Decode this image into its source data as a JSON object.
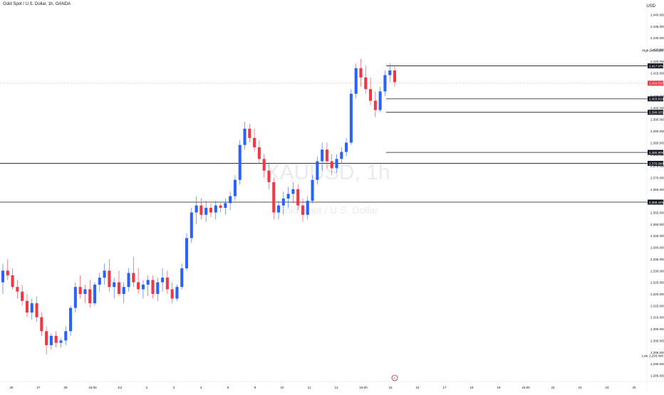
{
  "header": {
    "title": "Gold Spot / U.S. Dollar, 1h, OANDA",
    "currency": "USD"
  },
  "watermark": {
    "symbol": "XAUUSD, 1h",
    "description": "Gold Spot / U.S. Dollar"
  },
  "colors": {
    "up": "#2962ff",
    "down": "#f23645",
    "level_line": "#131722",
    "price_line": "#f23645",
    "label_bg": "#131722",
    "price_bg": "#f23645"
  },
  "chart_data": {
    "type": "candlestick",
    "ylim": [
      2283,
      2442
    ],
    "y_ticks": [
      "2,440.000",
      "2,435.000",
      "2,430.000",
      "2,425.000",
      "2,420.000",
      "2,415.000",
      "2,410.000",
      "2,405.000",
      "2,400.000",
      "2,395.000",
      "2,390.000",
      "2,385.000",
      "2,380.000",
      "2,375.000",
      "2,370.000",
      "2,365.000",
      "2,360.000",
      "2,355.000",
      "2,350.000",
      "2,345.000",
      "2,340.000",
      "2,335.000",
      "2,330.000",
      "2,325.000",
      "2,320.000",
      "2,315.000",
      "2,310.000",
      "2,305.000",
      "2,300.000",
      "2,295.000",
      "2,290.000",
      "2,285.000"
    ],
    "x_ticks": [
      "26",
      "27",
      "28",
      "15:00",
      "Jul",
      "2",
      "3",
      "4",
      "8",
      "9",
      "10",
      "11",
      "12",
      "15:00",
      "15",
      "16",
      "17",
      "18",
      "19",
      "15:00",
      "22",
      "23",
      "24",
      "25"
    ],
    "horizontal_levels": [
      {
        "price": "2,417.975",
        "value": 2417.975,
        "extends": "right"
      },
      {
        "price": "2,403.810",
        "value": 2403.81,
        "extends": "right"
      },
      {
        "price": "2,398.025",
        "value": 2398.025,
        "extends": "right"
      },
      {
        "price": "2,380.805",
        "value": 2380.805,
        "extends": "right"
      },
      {
        "price": "2,376.090",
        "value": 2376.09,
        "extends": "full"
      },
      {
        "price": "2,359.445",
        "value": 2359.445,
        "extends": "full"
      }
    ],
    "current_price": {
      "price": "2,410.530",
      "value": 2410.53
    },
    "high": {
      "label": "High",
      "price": "2,424.680",
      "value": 2424.68
    },
    "low": {
      "label": "Low",
      "price": "2,293.490",
      "value": 2293.49
    },
    "candles": [
      [
        2325,
        2333,
        2320,
        2330
      ],
      [
        2330,
        2335,
        2326,
        2328
      ],
      [
        2328,
        2331,
        2322,
        2323
      ],
      [
        2323,
        2326,
        2318,
        2321
      ],
      [
        2321,
        2324,
        2315,
        2317
      ],
      [
        2317,
        2320,
        2310,
        2312
      ],
      [
        2312,
        2318,
        2309,
        2316
      ],
      [
        2316,
        2319,
        2308,
        2310
      ],
      [
        2310,
        2312,
        2302,
        2304
      ],
      [
        2304,
        2306,
        2294,
        2298
      ],
      [
        2298,
        2303,
        2296,
        2302
      ],
      [
        2302,
        2304,
        2297,
        2299
      ],
      [
        2299,
        2301,
        2297,
        2300
      ],
      [
        2300,
        2306,
        2298,
        2304
      ],
      [
        2304,
        2315,
        2302,
        2314
      ],
      [
        2314,
        2325,
        2312,
        2323
      ],
      [
        2323,
        2328,
        2318,
        2320
      ],
      [
        2320,
        2324,
        2316,
        2322
      ],
      [
        2322,
        2326,
        2314,
        2316
      ],
      [
        2316,
        2325,
        2315,
        2324
      ],
      [
        2324,
        2329,
        2321,
        2327
      ],
      [
        2327,
        2333,
        2324,
        2330
      ],
      [
        2330,
        2335,
        2321,
        2323
      ],
      [
        2323,
        2327,
        2318,
        2325
      ],
      [
        2325,
        2330,
        2319,
        2320
      ],
      [
        2320,
        2325,
        2316,
        2323
      ],
      [
        2323,
        2331,
        2321,
        2329
      ],
      [
        2329,
        2336,
        2323,
        2325
      ],
      [
        2325,
        2331,
        2320,
        2322
      ],
      [
        2322,
        2326,
        2318,
        2324
      ],
      [
        2324,
        2328,
        2319,
        2326
      ],
      [
        2326,
        2328,
        2318,
        2320
      ],
      [
        2320,
        2327,
        2317,
        2325
      ],
      [
        2325,
        2331,
        2321,
        2327
      ],
      [
        2327,
        2330,
        2320,
        2322
      ],
      [
        2322,
        2325,
        2316,
        2318
      ],
      [
        2318,
        2324,
        2317,
        2323
      ],
      [
        2323,
        2333,
        2322,
        2331
      ],
      [
        2331,
        2346,
        2330,
        2344
      ],
      [
        2344,
        2357,
        2342,
        2355
      ],
      [
        2355,
        2362,
        2350,
        2358
      ],
      [
        2358,
        2361,
        2352,
        2354
      ],
      [
        2354,
        2360,
        2351,
        2357
      ],
      [
        2357,
        2359,
        2353,
        2355
      ],
      [
        2355,
        2360,
        2352,
        2358
      ],
      [
        2358,
        2359,
        2355,
        2357
      ],
      [
        2357,
        2361,
        2354,
        2359
      ],
      [
        2359,
        2364,
        2356,
        2362
      ],
      [
        2362,
        2371,
        2360,
        2369
      ],
      [
        2369,
        2386,
        2367,
        2384
      ],
      [
        2384,
        2394,
        2382,
        2391
      ],
      [
        2391,
        2393,
        2385,
        2387
      ],
      [
        2387,
        2391,
        2381,
        2383
      ],
      [
        2383,
        2386,
        2376,
        2378
      ],
      [
        2378,
        2380,
        2370,
        2373
      ],
      [
        2373,
        2376,
        2365,
        2368
      ],
      [
        2368,
        2370,
        2352,
        2355
      ],
      [
        2355,
        2360,
        2352,
        2358
      ],
      [
        2358,
        2364,
        2354,
        2361
      ],
      [
        2361,
        2366,
        2357,
        2363
      ],
      [
        2363,
        2368,
        2359,
        2365
      ],
      [
        2365,
        2367,
        2356,
        2358
      ],
      [
        2358,
        2361,
        2351,
        2354
      ],
      [
        2354,
        2362,
        2352,
        2360
      ],
      [
        2360,
        2371,
        2359,
        2369
      ],
      [
        2369,
        2379,
        2367,
        2377
      ],
      [
        2377,
        2385,
        2373,
        2382
      ],
      [
        2382,
        2385,
        2374,
        2377
      ],
      [
        2377,
        2380,
        2371,
        2374
      ],
      [
        2374,
        2380,
        2372,
        2378
      ],
      [
        2378,
        2383,
        2376,
        2381
      ],
      [
        2381,
        2387,
        2379,
        2385
      ],
      [
        2385,
        2408,
        2384,
        2406
      ],
      [
        2406,
        2419,
        2404,
        2417
      ],
      [
        2417,
        2421,
        2409,
        2413
      ],
      [
        2413,
        2418,
        2406,
        2408
      ],
      [
        2408,
        2413,
        2401,
        2403
      ],
      [
        2403,
        2407,
        2396,
        2399
      ],
      [
        2399,
        2409,
        2398,
        2407
      ],
      [
        2407,
        2416,
        2405,
        2414
      ],
      [
        2414,
        2419,
        2411,
        2416
      ],
      [
        2416,
        2418,
        2409,
        2411
      ]
    ]
  }
}
